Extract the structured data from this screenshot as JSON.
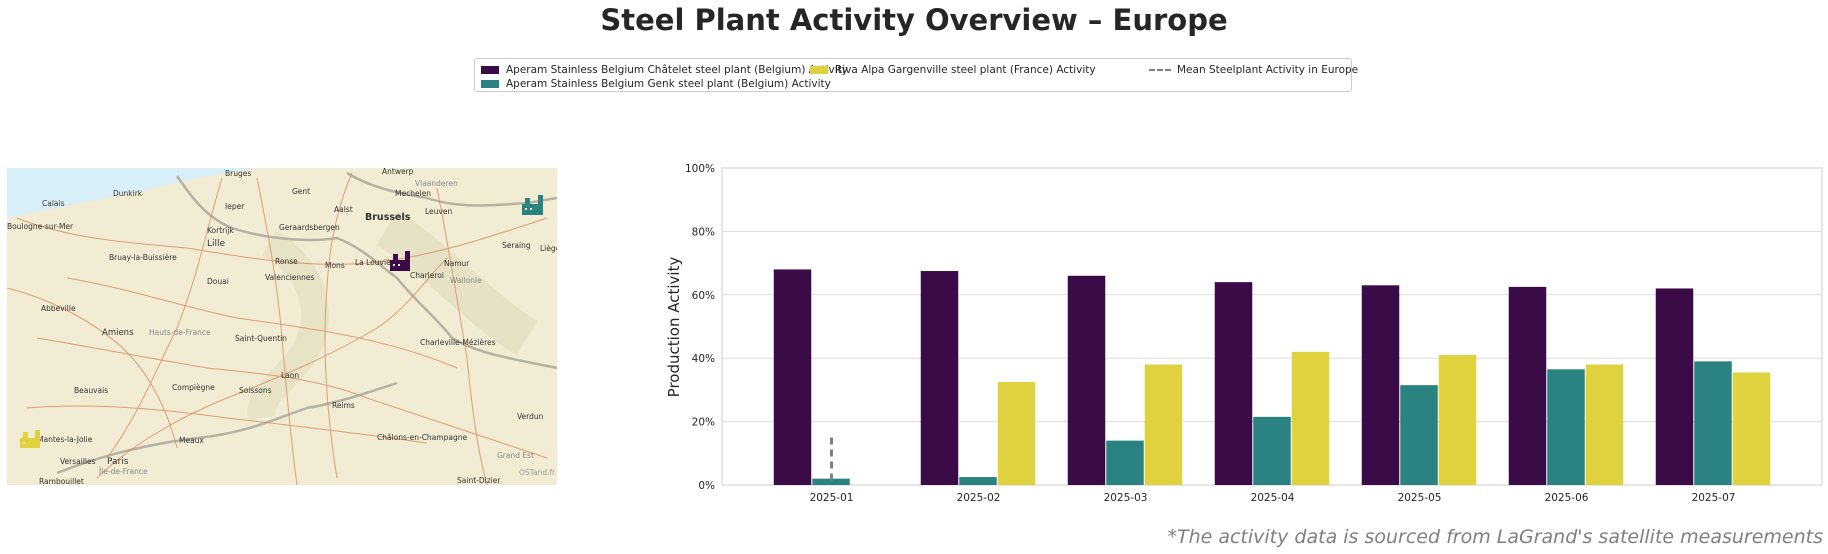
{
  "title": "Steel Plant Activity Overview – Europe",
  "footnote": "*The activity data is sourced from LaGrand's satellite measurements",
  "colors": {
    "chatelet": "#3b0b47",
    "genk": "#2a8380",
    "gargenville": "#e0d13e",
    "mean": "#808080"
  },
  "map": {
    "labels": [
      "Antwerp",
      "Bruges",
      "Gent",
      "Mechelen",
      "Vlaanderen",
      "Calais",
      "Dunkirk",
      "Ieper",
      "Aalst",
      "Leuven",
      "Brussels",
      "Boulogne-sur-Mer",
      "Kortrijk",
      "Geraardsbergen",
      "Lille",
      "Ronse",
      "Mons",
      "La Louvière",
      "Charleroi",
      "Namur",
      "Seraing",
      "Liège",
      "Wallonie",
      "Bruay-la-Buissière",
      "Douai",
      "Valenciennes",
      "Abbeville",
      "Amiens",
      "Hauts-de-France",
      "Saint-Quentin",
      "Charleville-Mézières",
      "Laon",
      "Beauvais",
      "Compiègne",
      "Soissons",
      "Reims",
      "Verdun",
      "Mantes-la-Jolie",
      "Versailles",
      "Paris",
      "Meaux",
      "Châlons-en-Champagne",
      "Saint-Dizier",
      "Île-de-France",
      "Grand Est",
      "Rambouillet"
    ],
    "attribution": "OSTand.fr",
    "plant_icons": [
      "chatelet-plant-icon",
      "genk-plant-icon",
      "gargenville-plant-icon"
    ]
  },
  "chart_data": {
    "type": "bar",
    "categories": [
      "2025-01",
      "2025-02",
      "2025-03",
      "2025-04",
      "2025-05",
      "2025-06",
      "2025-07"
    ],
    "series": [
      {
        "name": "Aperam Stainless Belgium Châtelet steel plant (Belgium) Activity",
        "values": [
          68,
          67.5,
          66,
          64,
          63,
          62.5,
          62
        ]
      },
      {
        "name": "Aperam Stainless Belgium Genk steel plant (Belgium) Activity",
        "values": [
          2,
          2.5,
          14,
          21.5,
          31.5,
          36.5,
          39
        ]
      },
      {
        "name": "Riva Alpa Gargenville steel plant (France) Activity",
        "values": [
          null,
          32.5,
          38,
          42,
          41,
          38,
          35.5
        ]
      }
    ],
    "mean_line": {
      "name": "Mean Steelplant Activity in Europe",
      "x": "2025-01",
      "from": 0,
      "to": 15
    },
    "ylabel": "Production Activity",
    "xlabel": "",
    "ylim": [
      0,
      100
    ],
    "yticks": [
      "0%",
      "20%",
      "40%",
      "60%",
      "80%",
      "100%"
    ],
    "grid": true,
    "legend": "top-center"
  }
}
